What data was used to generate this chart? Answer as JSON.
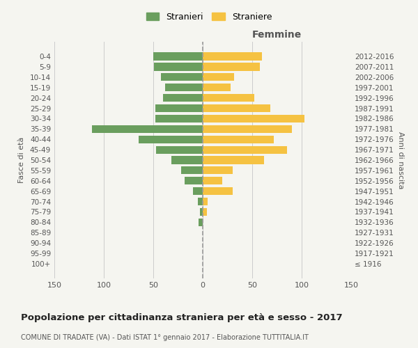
{
  "age_groups": [
    "100+",
    "95-99",
    "90-94",
    "85-89",
    "80-84",
    "75-79",
    "70-74",
    "65-69",
    "60-64",
    "55-59",
    "50-54",
    "45-49",
    "40-44",
    "35-39",
    "30-34",
    "25-29",
    "20-24",
    "15-19",
    "10-14",
    "5-9",
    "0-4"
  ],
  "birth_years": [
    "≤ 1916",
    "1917-1921",
    "1922-1926",
    "1927-1931",
    "1932-1936",
    "1937-1941",
    "1942-1946",
    "1947-1951",
    "1952-1956",
    "1957-1961",
    "1962-1966",
    "1967-1971",
    "1972-1976",
    "1977-1981",
    "1982-1986",
    "1987-1991",
    "1992-1996",
    "1997-2001",
    "2002-2006",
    "2007-2011",
    "2012-2016"
  ],
  "males": [
    0,
    0,
    0,
    0,
    4,
    3,
    5,
    10,
    18,
    22,
    32,
    47,
    65,
    112,
    48,
    48,
    40,
    38,
    42,
    49,
    50
  ],
  "females": [
    0,
    0,
    0,
    0,
    0,
    4,
    5,
    30,
    20,
    30,
    62,
    85,
    72,
    90,
    103,
    68,
    52,
    28,
    32,
    58,
    60
  ],
  "male_color": "#6a9e5e",
  "female_color": "#f5c242",
  "background_color": "#f5f5f0",
  "title": "Popolazione per cittadinanza straniera per età e sesso - 2017",
  "subtitle": "COMUNE DI TRADATE (VA) - Dati ISTAT 1° gennaio 2017 - Elaborazione TUTTITALIA.IT",
  "right_label": "Femmine",
  "ylabel_left": "Fasce di età",
  "ylabel_right": "Anni di nascita",
  "legend_male": "Stranieri",
  "legend_female": "Straniere",
  "xlim": 150,
  "dashed_line_color": "#999999"
}
